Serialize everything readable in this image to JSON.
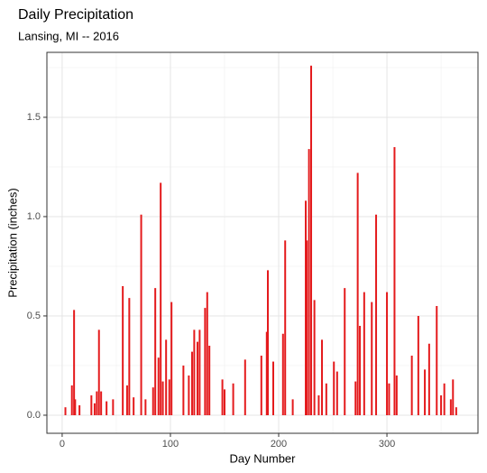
{
  "chart_data": {
    "type": "spike",
    "title": "Daily Precipitation",
    "subtitle": "Lansing, MI -- 2016",
    "x_label": "Day Number",
    "y_label": "Precipitation (inches)",
    "color": "#e41a1c",
    "grid": true,
    "xlim": [
      -14.1,
      384.1
    ],
    "ylim": [
      -0.091,
      1.827
    ],
    "xticks": [
      0,
      100,
      200,
      300
    ],
    "yticks": [
      {
        "value": 0,
        "label": "0.0"
      },
      0.5,
      {
        "value": 1,
        "label": "1.0"
      },
      1.5
    ],
    "x_minor_grid": [
      50,
      150,
      250,
      350
    ],
    "y_minor_grid": [
      0.25,
      0.75,
      1.25,
      1.75
    ],
    "x": [
      3,
      9,
      11,
      12,
      16,
      27,
      30,
      32,
      34,
      36,
      41,
      47,
      56,
      60,
      62,
      66,
      73,
      77,
      84,
      86,
      89,
      91,
      93,
      96,
      99,
      101,
      112,
      117,
      120,
      122,
      125,
      127,
      132,
      134,
      136,
      148,
      150,
      158,
      169,
      184,
      189,
      190,
      195,
      204,
      206,
      213,
      225,
      226,
      228,
      230,
      233,
      237,
      240,
      244,
      251,
      254,
      261,
      271,
      273,
      275,
      279,
      286,
      290,
      300,
      302,
      307,
      309,
      323,
      329,
      335,
      339,
      346,
      350,
      353,
      359,
      361,
      364
    ],
    "values": [
      0.04,
      0.15,
      0.53,
      0.08,
      0.05,
      0.1,
      0.06,
      0.12,
      0.43,
      0.12,
      0.07,
      0.08,
      0.65,
      0.15,
      0.59,
      0.09,
      1.01,
      0.08,
      0.14,
      0.64,
      0.29,
      1.17,
      0.17,
      0.38,
      0.18,
      0.57,
      0.25,
      0.2,
      0.32,
      0.43,
      0.37,
      0.43,
      0.54,
      0.62,
      0.35,
      0.18,
      0.13,
      0.16,
      0.28,
      0.3,
      0.42,
      0.73,
      0.27,
      0.41,
      0.88,
      0.08,
      1.08,
      0.88,
      1.34,
      1.76,
      0.58,
      0.1,
      0.38,
      0.16,
      0.27,
      0.22,
      0.64,
      0.17,
      1.22,
      0.45,
      0.62,
      0.57,
      1.01,
      0.62,
      0.16,
      1.35,
      0.2,
      0.3,
      0.5,
      0.23,
      0.36,
      0.55,
      0.1,
      0.16,
      0.08,
      0.18,
      0.04
    ]
  }
}
